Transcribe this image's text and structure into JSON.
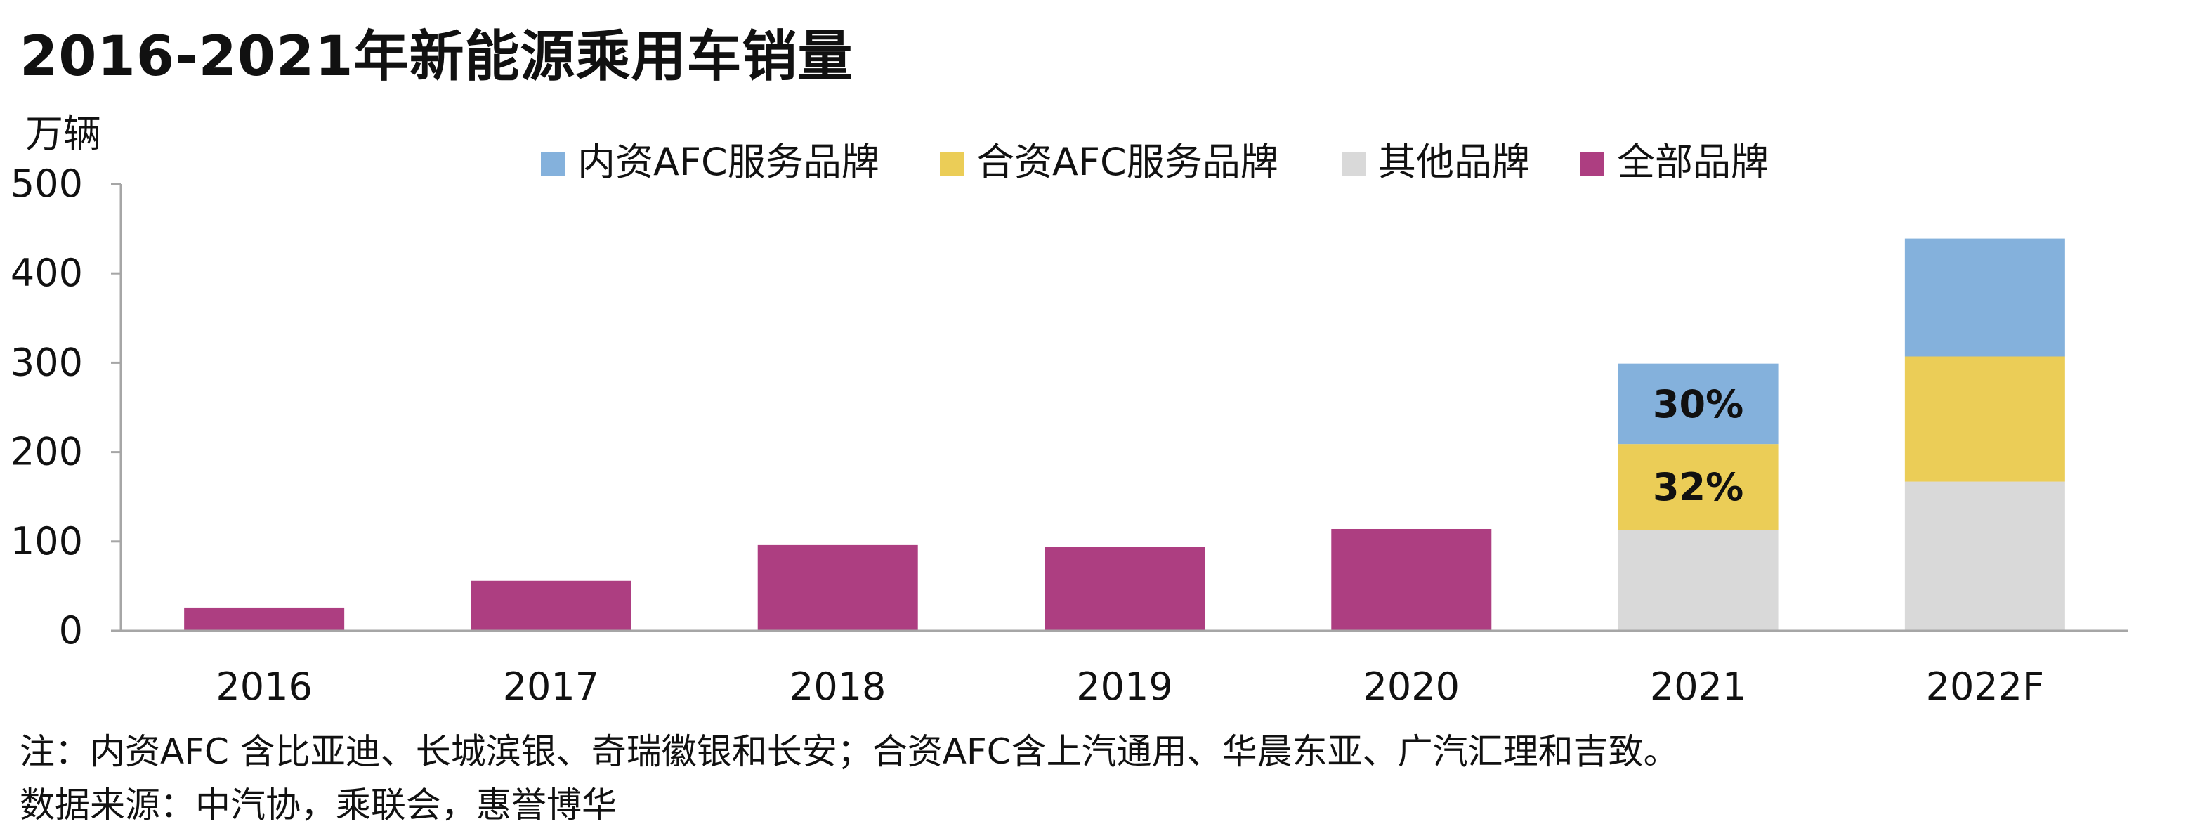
{
  "title": "2016-2021年新能源乘用车销量",
  "y_unit": "万辆",
  "note": "注：内资AFC 含比亚迪、长城滨银、奇瑞徽银和长安；合资AFC含上汽通用、华晨东亚、广汽汇理和吉致。",
  "source": "数据来源：中汽协，乘联会，惠誉博华",
  "chart_data": {
    "type": "bar",
    "title": "2016-2021年新能源乘用车销量",
    "ylabel": "万辆",
    "xlabel": "",
    "ylim": [
      0,
      500
    ],
    "yticks": [
      "0",
      "100",
      "200",
      "300",
      "400",
      "500"
    ],
    "categories": [
      "2016",
      "2017",
      "2018",
      "2019",
      "2020",
      "2021",
      "2022F"
    ],
    "legend_position": "top",
    "grid": false,
    "series": [
      {
        "name": "内资AFC服务品牌",
        "color": "#84b1dc",
        "values": [
          null,
          null,
          null,
          null,
          null,
          90,
          132
        ]
      },
      {
        "name": "合资AFC服务品牌",
        "color": "#ebcd57",
        "values": [
          null,
          null,
          null,
          null,
          null,
          96,
          140
        ]
      },
      {
        "name": "其他品牌",
        "color": "#d9d9d9",
        "values": [
          null,
          null,
          null,
          null,
          null,
          113,
          167
        ]
      },
      {
        "name": "全部品牌",
        "color": "#ad3e81",
        "values": [
          26,
          56,
          96,
          94,
          114,
          null,
          null
        ]
      }
    ],
    "annotations": [
      {
        "category": "2021",
        "series": "内资AFC服务品牌",
        "text": "30%"
      },
      {
        "category": "2021",
        "series": "合资AFC服务品牌",
        "text": "32%"
      }
    ]
  }
}
